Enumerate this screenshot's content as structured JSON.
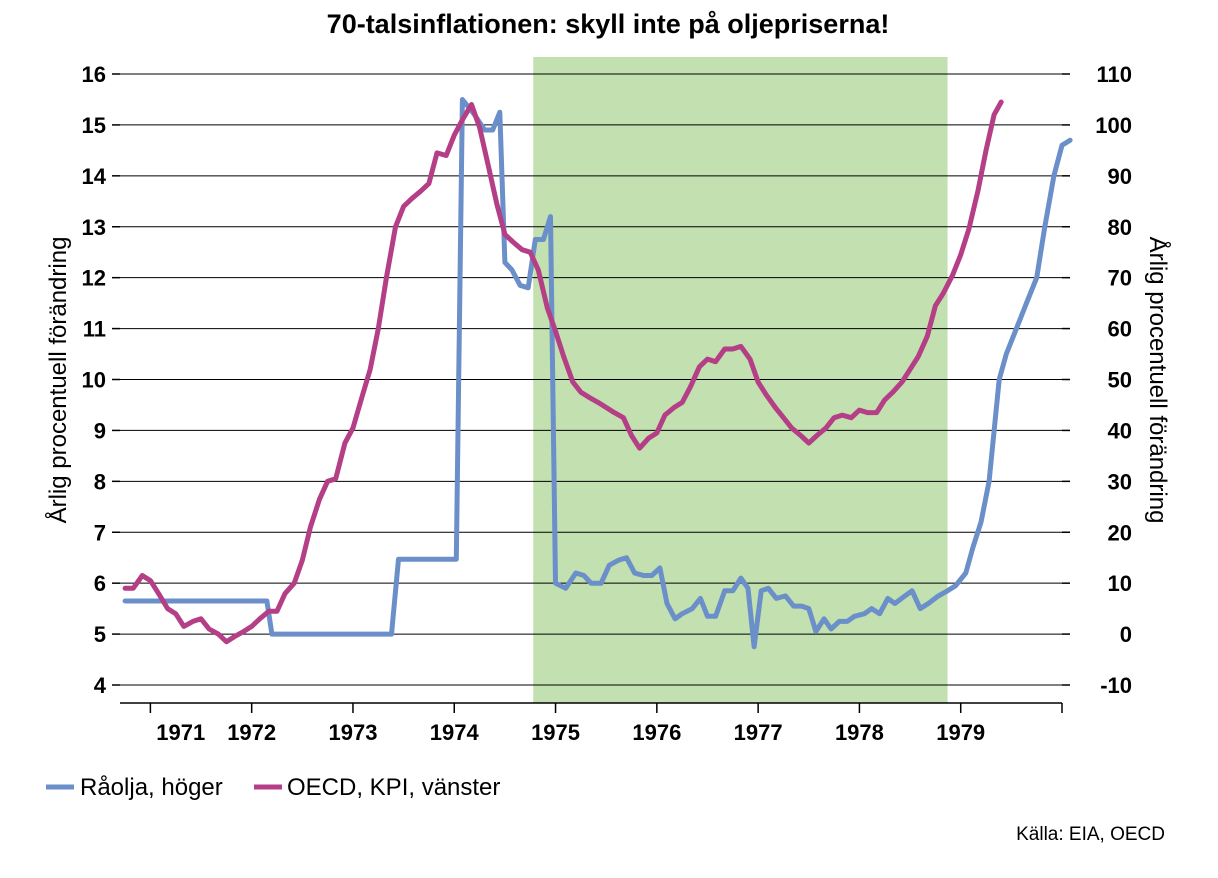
{
  "chart_data": {
    "type": "line",
    "title": "70-talsinflationen: skyll inte på oljepriserna!",
    "y_left_label": "Årlig procentuell förändring",
    "y_right_label": "Årlig procentuell förändring",
    "y_left_lim": [
      4,
      16
    ],
    "y_right_lim": [
      -10,
      110
    ],
    "y_left_ticks": [
      "4",
      "5",
      "6",
      "7",
      "8",
      "9",
      "10",
      "11",
      "12",
      "13",
      "14",
      "15",
      "16"
    ],
    "y_right_ticks": [
      "-10",
      "0",
      "10",
      "20",
      "30",
      "40",
      "50",
      "60",
      "70",
      "80",
      "90",
      "100",
      "110"
    ],
    "x_lim": [
      1970.7,
      1980.0
    ],
    "x_tick_positions": [
      1971,
      1972,
      1973,
      1974,
      1975,
      1976,
      1977,
      1978,
      1979,
      1980
    ],
    "x_labels": [
      {
        "x": 1971.3,
        "label": "1971"
      },
      {
        "x": 1972.0,
        "label": "1972"
      },
      {
        "x": 1973.0,
        "label": "1973"
      },
      {
        "x": 1974.0,
        "label": "1974"
      },
      {
        "x": 1975.0,
        "label": "1975"
      },
      {
        "x": 1976.0,
        "label": "1976"
      },
      {
        "x": 1977.0,
        "label": "1977"
      },
      {
        "x": 1978.0,
        "label": "1978"
      },
      {
        "x": 1979.0,
        "label": "1979"
      }
    ],
    "grid": true,
    "shaded_region": {
      "from": 1974.78,
      "to": 1978.87,
      "color": "#c3e0b0"
    },
    "legend_position": "bottom-left",
    "source": "Källa: EIA, OECD",
    "series": [
      {
        "name": "Råolja, höger",
        "axis": "right",
        "color": "#6b8fc9",
        "points": [
          [
            1970.75,
            6.5
          ],
          [
            1971.0,
            6.5
          ],
          [
            1971.25,
            6.5
          ],
          [
            1971.5,
            6.5
          ],
          [
            1971.75,
            6.5
          ],
          [
            1972.15,
            6.5
          ],
          [
            1972.2,
            0.0
          ],
          [
            1972.5,
            0.0
          ],
          [
            1972.75,
            0.0
          ],
          [
            1973.0,
            0.0
          ],
          [
            1973.25,
            0.0
          ],
          [
            1973.38,
            0.0
          ],
          [
            1973.45,
            14.7
          ],
          [
            1973.75,
            14.7
          ],
          [
            1974.02,
            14.7
          ],
          [
            1974.08,
            105.0
          ],
          [
            1974.2,
            102.0
          ],
          [
            1974.3,
            99.0
          ],
          [
            1974.38,
            99.0
          ],
          [
            1974.45,
            102.5
          ],
          [
            1974.5,
            73.0
          ],
          [
            1974.57,
            71.5
          ],
          [
            1974.65,
            68.5
          ],
          [
            1974.73,
            68.0
          ],
          [
            1974.8,
            77.5
          ],
          [
            1974.88,
            77.5
          ],
          [
            1974.95,
            82.0
          ],
          [
            1975.0,
            10.0
          ],
          [
            1975.1,
            9.0
          ],
          [
            1975.2,
            12.0
          ],
          [
            1975.28,
            11.5
          ],
          [
            1975.35,
            10.0
          ],
          [
            1975.45,
            10.0
          ],
          [
            1975.53,
            13.5
          ],
          [
            1975.62,
            14.5
          ],
          [
            1975.7,
            15.0
          ],
          [
            1975.78,
            12.0
          ],
          [
            1975.87,
            11.5
          ],
          [
            1975.95,
            11.5
          ],
          [
            1976.03,
            13.0
          ],
          [
            1976.1,
            6.0
          ],
          [
            1976.18,
            3.0
          ],
          [
            1976.25,
            4.0
          ],
          [
            1976.35,
            5.0
          ],
          [
            1976.43,
            7.0
          ],
          [
            1976.5,
            3.5
          ],
          [
            1976.58,
            3.5
          ],
          [
            1976.67,
            8.5
          ],
          [
            1976.75,
            8.5
          ],
          [
            1976.83,
            11.0
          ],
          [
            1976.9,
            9.0
          ],
          [
            1976.96,
            -2.5
          ],
          [
            1977.03,
            8.5
          ],
          [
            1977.1,
            9.0
          ],
          [
            1977.18,
            7.0
          ],
          [
            1977.27,
            7.5
          ],
          [
            1977.35,
            5.5
          ],
          [
            1977.43,
            5.5
          ],
          [
            1977.5,
            5.0
          ],
          [
            1977.57,
            0.5
          ],
          [
            1977.65,
            3.0
          ],
          [
            1977.72,
            1.0
          ],
          [
            1977.8,
            2.5
          ],
          [
            1977.88,
            2.5
          ],
          [
            1977.95,
            3.5
          ],
          [
            1978.05,
            4.0
          ],
          [
            1978.12,
            5.0
          ],
          [
            1978.2,
            4.0
          ],
          [
            1978.28,
            7.0
          ],
          [
            1978.35,
            6.0
          ],
          [
            1978.45,
            7.5
          ],
          [
            1978.52,
            8.5
          ],
          [
            1978.6,
            5.0
          ],
          [
            1978.68,
            6.0
          ],
          [
            1978.78,
            7.5
          ],
          [
            1978.87,
            8.5
          ],
          [
            1978.95,
            9.5
          ],
          [
            1979.05,
            12.0
          ],
          [
            1979.12,
            17.0
          ],
          [
            1979.2,
            22.0
          ],
          [
            1979.28,
            30.0
          ],
          [
            1979.38,
            50.0
          ],
          [
            1979.45,
            55.0
          ],
          [
            1979.55,
            60.0
          ],
          [
            1979.65,
            65.0
          ],
          [
            1979.75,
            70.0
          ],
          [
            1979.83,
            80.0
          ],
          [
            1979.92,
            90.0
          ],
          [
            1980.0,
            96.0
          ],
          [
            1980.08,
            97.0
          ]
        ]
      },
      {
        "name": "OECD, KPI, vänster",
        "axis": "left",
        "color": "#b43f86",
        "points": [
          [
            1970.75,
            5.9
          ],
          [
            1970.83,
            5.9
          ],
          [
            1970.92,
            6.15
          ],
          [
            1971.0,
            6.05
          ],
          [
            1971.08,
            5.8
          ],
          [
            1971.17,
            5.5
          ],
          [
            1971.25,
            5.4
          ],
          [
            1971.33,
            5.15
          ],
          [
            1971.42,
            5.25
          ],
          [
            1971.5,
            5.3
          ],
          [
            1971.58,
            5.1
          ],
          [
            1971.67,
            5.0
          ],
          [
            1971.75,
            4.85
          ],
          [
            1971.83,
            4.95
          ],
          [
            1971.92,
            5.05
          ],
          [
            1972.0,
            5.15
          ],
          [
            1972.08,
            5.3
          ],
          [
            1972.17,
            5.45
          ],
          [
            1972.25,
            5.45
          ],
          [
            1972.33,
            5.8
          ],
          [
            1972.42,
            6.0
          ],
          [
            1972.5,
            6.45
          ],
          [
            1972.58,
            7.1
          ],
          [
            1972.67,
            7.65
          ],
          [
            1972.75,
            8.0
          ],
          [
            1972.83,
            8.05
          ],
          [
            1972.92,
            8.75
          ],
          [
            1973.0,
            9.05
          ],
          [
            1973.08,
            9.6
          ],
          [
            1973.17,
            10.2
          ],
          [
            1973.25,
            11.0
          ],
          [
            1973.33,
            12.0
          ],
          [
            1973.42,
            13.0
          ],
          [
            1973.5,
            13.4
          ],
          [
            1973.58,
            13.55
          ],
          [
            1973.67,
            13.7
          ],
          [
            1973.75,
            13.85
          ],
          [
            1973.83,
            14.45
          ],
          [
            1973.92,
            14.4
          ],
          [
            1974.0,
            14.8
          ],
          [
            1974.08,
            15.1
          ],
          [
            1974.17,
            15.4
          ],
          [
            1974.25,
            14.95
          ],
          [
            1974.33,
            14.25
          ],
          [
            1974.42,
            13.45
          ],
          [
            1974.5,
            12.85
          ],
          [
            1974.58,
            12.7
          ],
          [
            1974.67,
            12.55
          ],
          [
            1974.75,
            12.5
          ],
          [
            1974.83,
            12.15
          ],
          [
            1974.92,
            11.4
          ],
          [
            1975.0,
            10.95
          ],
          [
            1975.08,
            10.45
          ],
          [
            1975.17,
            9.95
          ],
          [
            1975.25,
            9.75
          ],
          [
            1975.33,
            9.65
          ],
          [
            1975.42,
            9.55
          ],
          [
            1975.5,
            9.45
          ],
          [
            1975.58,
            9.35
          ],
          [
            1975.67,
            9.25
          ],
          [
            1975.75,
            8.9
          ],
          [
            1975.83,
            8.65
          ],
          [
            1975.92,
            8.85
          ],
          [
            1976.0,
            8.95
          ],
          [
            1976.08,
            9.3
          ],
          [
            1976.17,
            9.45
          ],
          [
            1976.25,
            9.55
          ],
          [
            1976.33,
            9.85
          ],
          [
            1976.42,
            10.25
          ],
          [
            1976.5,
            10.4
          ],
          [
            1976.58,
            10.35
          ],
          [
            1976.67,
            10.6
          ],
          [
            1976.75,
            10.6
          ],
          [
            1976.83,
            10.65
          ],
          [
            1976.92,
            10.4
          ],
          [
            1977.0,
            9.95
          ],
          [
            1977.08,
            9.7
          ],
          [
            1977.17,
            9.45
          ],
          [
            1977.25,
            9.25
          ],
          [
            1977.33,
            9.05
          ],
          [
            1977.42,
            8.9
          ],
          [
            1977.5,
            8.75
          ],
          [
            1977.58,
            8.9
          ],
          [
            1977.67,
            9.05
          ],
          [
            1977.75,
            9.25
          ],
          [
            1977.83,
            9.3
          ],
          [
            1977.92,
            9.25
          ],
          [
            1978.0,
            9.4
          ],
          [
            1978.08,
            9.35
          ],
          [
            1978.17,
            9.35
          ],
          [
            1978.25,
            9.6
          ],
          [
            1978.33,
            9.75
          ],
          [
            1978.42,
            9.95
          ],
          [
            1978.5,
            10.2
          ],
          [
            1978.58,
            10.45
          ],
          [
            1978.67,
            10.85
          ],
          [
            1978.75,
            11.45
          ],
          [
            1978.83,
            11.7
          ],
          [
            1978.92,
            12.05
          ],
          [
            1979.0,
            12.45
          ],
          [
            1979.08,
            12.95
          ],
          [
            1979.17,
            13.7
          ],
          [
            1979.25,
            14.5
          ],
          [
            1979.33,
            15.2
          ],
          [
            1979.4,
            15.45
          ]
        ]
      }
    ]
  }
}
